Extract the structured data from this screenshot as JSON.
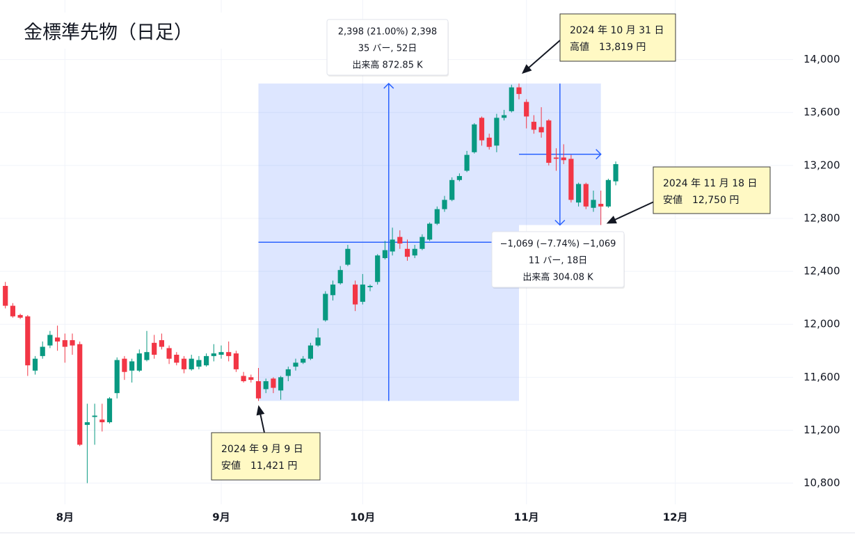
{
  "chart_data": {
    "type": "candlestick",
    "title": "金標準先物（日足）",
    "categories": [
      null,
      null,
      null,
      null,
      null,
      null,
      null,
      null,
      "8月",
      null,
      null,
      null,
      null,
      null,
      null,
      null,
      null,
      null,
      null,
      null,
      null,
      null,
      null,
      null,
      null,
      null,
      null,
      null,
      null,
      "9月",
      null,
      null,
      null,
      null,
      null,
      null,
      null,
      null,
      null,
      null,
      null,
      null,
      null,
      null,
      null,
      null,
      null,
      null,
      "10月",
      null,
      null,
      null,
      null,
      null,
      null,
      null,
      null,
      null,
      null,
      null,
      null,
      null,
      null,
      null,
      null,
      null,
      null,
      null,
      null,
      null,
      "11月",
      null,
      null,
      null,
      null,
      null,
      null,
      null,
      null,
      null,
      null,
      null,
      null,
      null,
      null,
      null,
      null,
      null,
      null,
      null,
      "12月"
    ],
    "open": [
      12290,
      12140,
      12070,
      12060,
      11650,
      11760,
      11840,
      11900,
      11880,
      11880,
      11850,
      11240,
      11300,
      11280,
      11260,
      11480,
      11740,
      11650,
      11650,
      11730,
      11860,
      11880,
      11820,
      11770,
      11740,
      11660,
      11680,
      11690,
      11760,
      11770,
      11790,
      11780,
      11610,
      11600,
      11570,
      11510,
      11590,
      11500,
      11610,
      11680,
      11710,
      11740,
      11840,
      12030,
      12220,
      12310,
      12450,
      12300,
      12170,
      12280,
      12320,
      12500,
      12550,
      12660,
      12570,
      12520,
      12570,
      12640,
      12760,
      12870,
      12940,
      13090,
      13160,
      13300,
      13560,
      13410,
      13350,
      13560,
      13610,
      13790,
      13680,
      13530,
      13490,
      13540,
      13260,
      13260,
      13250,
      12920,
      13060,
      12880,
      12910,
      12890,
      13080,
      null,
      null,
      null,
      null,
      null,
      null,
      null,
      null
    ],
    "high": [
      12320,
      12160,
      12080,
      12070,
      11760,
      11870,
      11950,
      11990,
      11930,
      11930,
      11870,
      11400,
      11400,
      11400,
      11450,
      11750,
      11760,
      11740,
      11810,
      11950,
      11920,
      11930,
      11840,
      11790,
      11760,
      11770,
      11760,
      11780,
      11850,
      11840,
      11870,
      11800,
      11640,
      11620,
      11670,
      11590,
      11600,
      11610,
      11680,
      11740,
      11760,
      11860,
      11970,
      12250,
      12330,
      12440,
      12600,
      12330,
      12380,
      12300,
      12530,
      12630,
      12730,
      12710,
      12640,
      12600,
      12680,
      12770,
      12890,
      12970,
      13110,
      13140,
      13310,
      13520,
      13570,
      13440,
      13590,
      13620,
      13810,
      13819,
      13700,
      13580,
      13640,
      13550,
      13330,
      13360,
      13280,
      13070,
      13070,
      13010,
      13010,
      13100,
      13230,
      null,
      null,
      null,
      null,
      null,
      null,
      null,
      null
    ],
    "low": [
      12120,
      12050,
      12040,
      11610,
      11620,
      11740,
      11820,
      11800,
      11710,
      11770,
      11080,
      10800,
      11090,
      11190,
      11250,
      11440,
      11580,
      11560,
      11640,
      11720,
      11740,
      11810,
      11700,
      11690,
      11630,
      11650,
      11660,
      11680,
      11720,
      11740,
      11720,
      11640,
      11560,
      11560,
      11421,
      11480,
      11480,
      11430,
      11570,
      11650,
      11700,
      11730,
      11830,
      12020,
      12180,
      12300,
      12440,
      12100,
      12150,
      12250,
      12300,
      12490,
      12520,
      12570,
      12480,
      12500,
      12560,
      12630,
      12750,
      12850,
      12930,
      13080,
      13150,
      13290,
      13350,
      13320,
      13300,
      13540,
      13600,
      13700,
      13480,
      13440,
      13410,
      13200,
      13160,
      13210,
      12920,
      12890,
      12870,
      12850,
      12750,
      12880,
      13050,
      null,
      null,
      null,
      null,
      null,
      null,
      null,
      null
    ],
    "close": [
      12140,
      12060,
      12050,
      11690,
      11740,
      11830,
      11920,
      11870,
      11830,
      11840,
      11090,
      11260,
      11310,
      11260,
      11440,
      11730,
      11640,
      11720,
      11780,
      11790,
      11770,
      11830,
      11740,
      11710,
      11660,
      11740,
      11730,
      11760,
      11780,
      11790,
      11760,
      11660,
      11570,
      11580,
      11440,
      11570,
      11520,
      11600,
      11660,
      11710,
      11740,
      11840,
      11900,
      12230,
      12300,
      12410,
      12570,
      12150,
      12300,
      12290,
      12520,
      12560,
      12640,
      12610,
      12510,
      12570,
      12660,
      12760,
      12870,
      12940,
      13090,
      13120,
      13280,
      13510,
      13390,
      13340,
      13560,
      13580,
      13790,
      13740,
      13570,
      13470,
      13450,
      13220,
      13250,
      13240,
      12940,
      13060,
      12890,
      12940,
      12890,
      13090,
      13210,
      null,
      null,
      null,
      null,
      null,
      null,
      null,
      null
    ],
    "up_color": "#089981",
    "down_color": "#f23645",
    "ylim": [
      10640,
      14450
    ],
    "yticks": [
      {
        "value": 10800,
        "label": "10,800"
      },
      {
        "value": 11200,
        "label": "11,200"
      },
      {
        "value": 11600,
        "label": "11,600"
      },
      {
        "value": 12000,
        "label": "12,000"
      },
      {
        "value": 12400,
        "label": "12,400"
      },
      {
        "value": 12800,
        "label": "12,800"
      },
      {
        "value": 13200,
        "label": "13,200"
      },
      {
        "value": 13600,
        "label": "13,600"
      },
      {
        "value": 14000,
        "label": "14,000"
      }
    ],
    "grid": true,
    "annotations": [
      {
        "lines": [
          "2024 年 9 月 9 日",
          "安値　11,421 円"
        ]
      },
      {
        "lines": [
          "2024 年 10 月 31 日",
          "高値　13,819 円"
        ]
      },
      {
        "lines": [
          "2024 年 11 月 18 日",
          "安値　12,750 円"
        ]
      }
    ],
    "measures": [
      {
        "lines": [
          "2,398 (21.00%) 2,398",
          "35 バー, 52日",
          "出来高 872.85 K"
        ]
      },
      {
        "lines": [
          "−1,069 (−7.74%) −1,069",
          "11 バー, 18日",
          "出来高 304.08 K"
        ]
      }
    ]
  }
}
